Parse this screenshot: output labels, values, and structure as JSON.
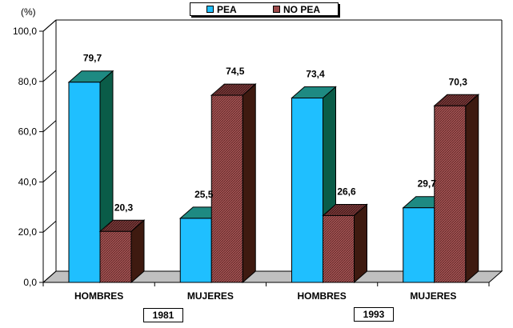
{
  "chart_data": {
    "type": "bar",
    "style": "3d-clustered",
    "ylabel": "(%)",
    "ylim": [
      0,
      100
    ],
    "yticks": [
      "0,0",
      "20,0",
      "40,0",
      "60,0",
      "80,0",
      "100,0"
    ],
    "categories": [
      "HOMBRES",
      "MUJERES",
      "HOMBRES",
      "MUJERES"
    ],
    "groups": [
      {
        "label": "1981",
        "categories": [
          "HOMBRES",
          "MUJERES"
        ]
      },
      {
        "label": "1993",
        "categories": [
          "HOMBRES",
          "MUJERES"
        ]
      }
    ],
    "series": [
      {
        "name": "PEA",
        "values": [
          79.7,
          25.5,
          73.4,
          29.7
        ],
        "labels": [
          "79,7",
          "25,5",
          "73,4",
          "29,7"
        ]
      },
      {
        "name": "NO PEA",
        "values": [
          20.3,
          74.5,
          26.6,
          70.3
        ],
        "labels": [
          "20,3",
          "74,5",
          "26,6",
          "70,3"
        ]
      }
    ],
    "legend": {
      "position": "top-center",
      "entries": [
        "PEA",
        "NO PEA"
      ]
    }
  },
  "colors": {
    "pea_front": "#1FBFFF",
    "pea_top": "#1E8A82",
    "pea_side": "#0A5C48",
    "nopea_front": "#9C4A4A",
    "nopea_top": "#6B3333",
    "nopea_side": "#3E1A10"
  }
}
